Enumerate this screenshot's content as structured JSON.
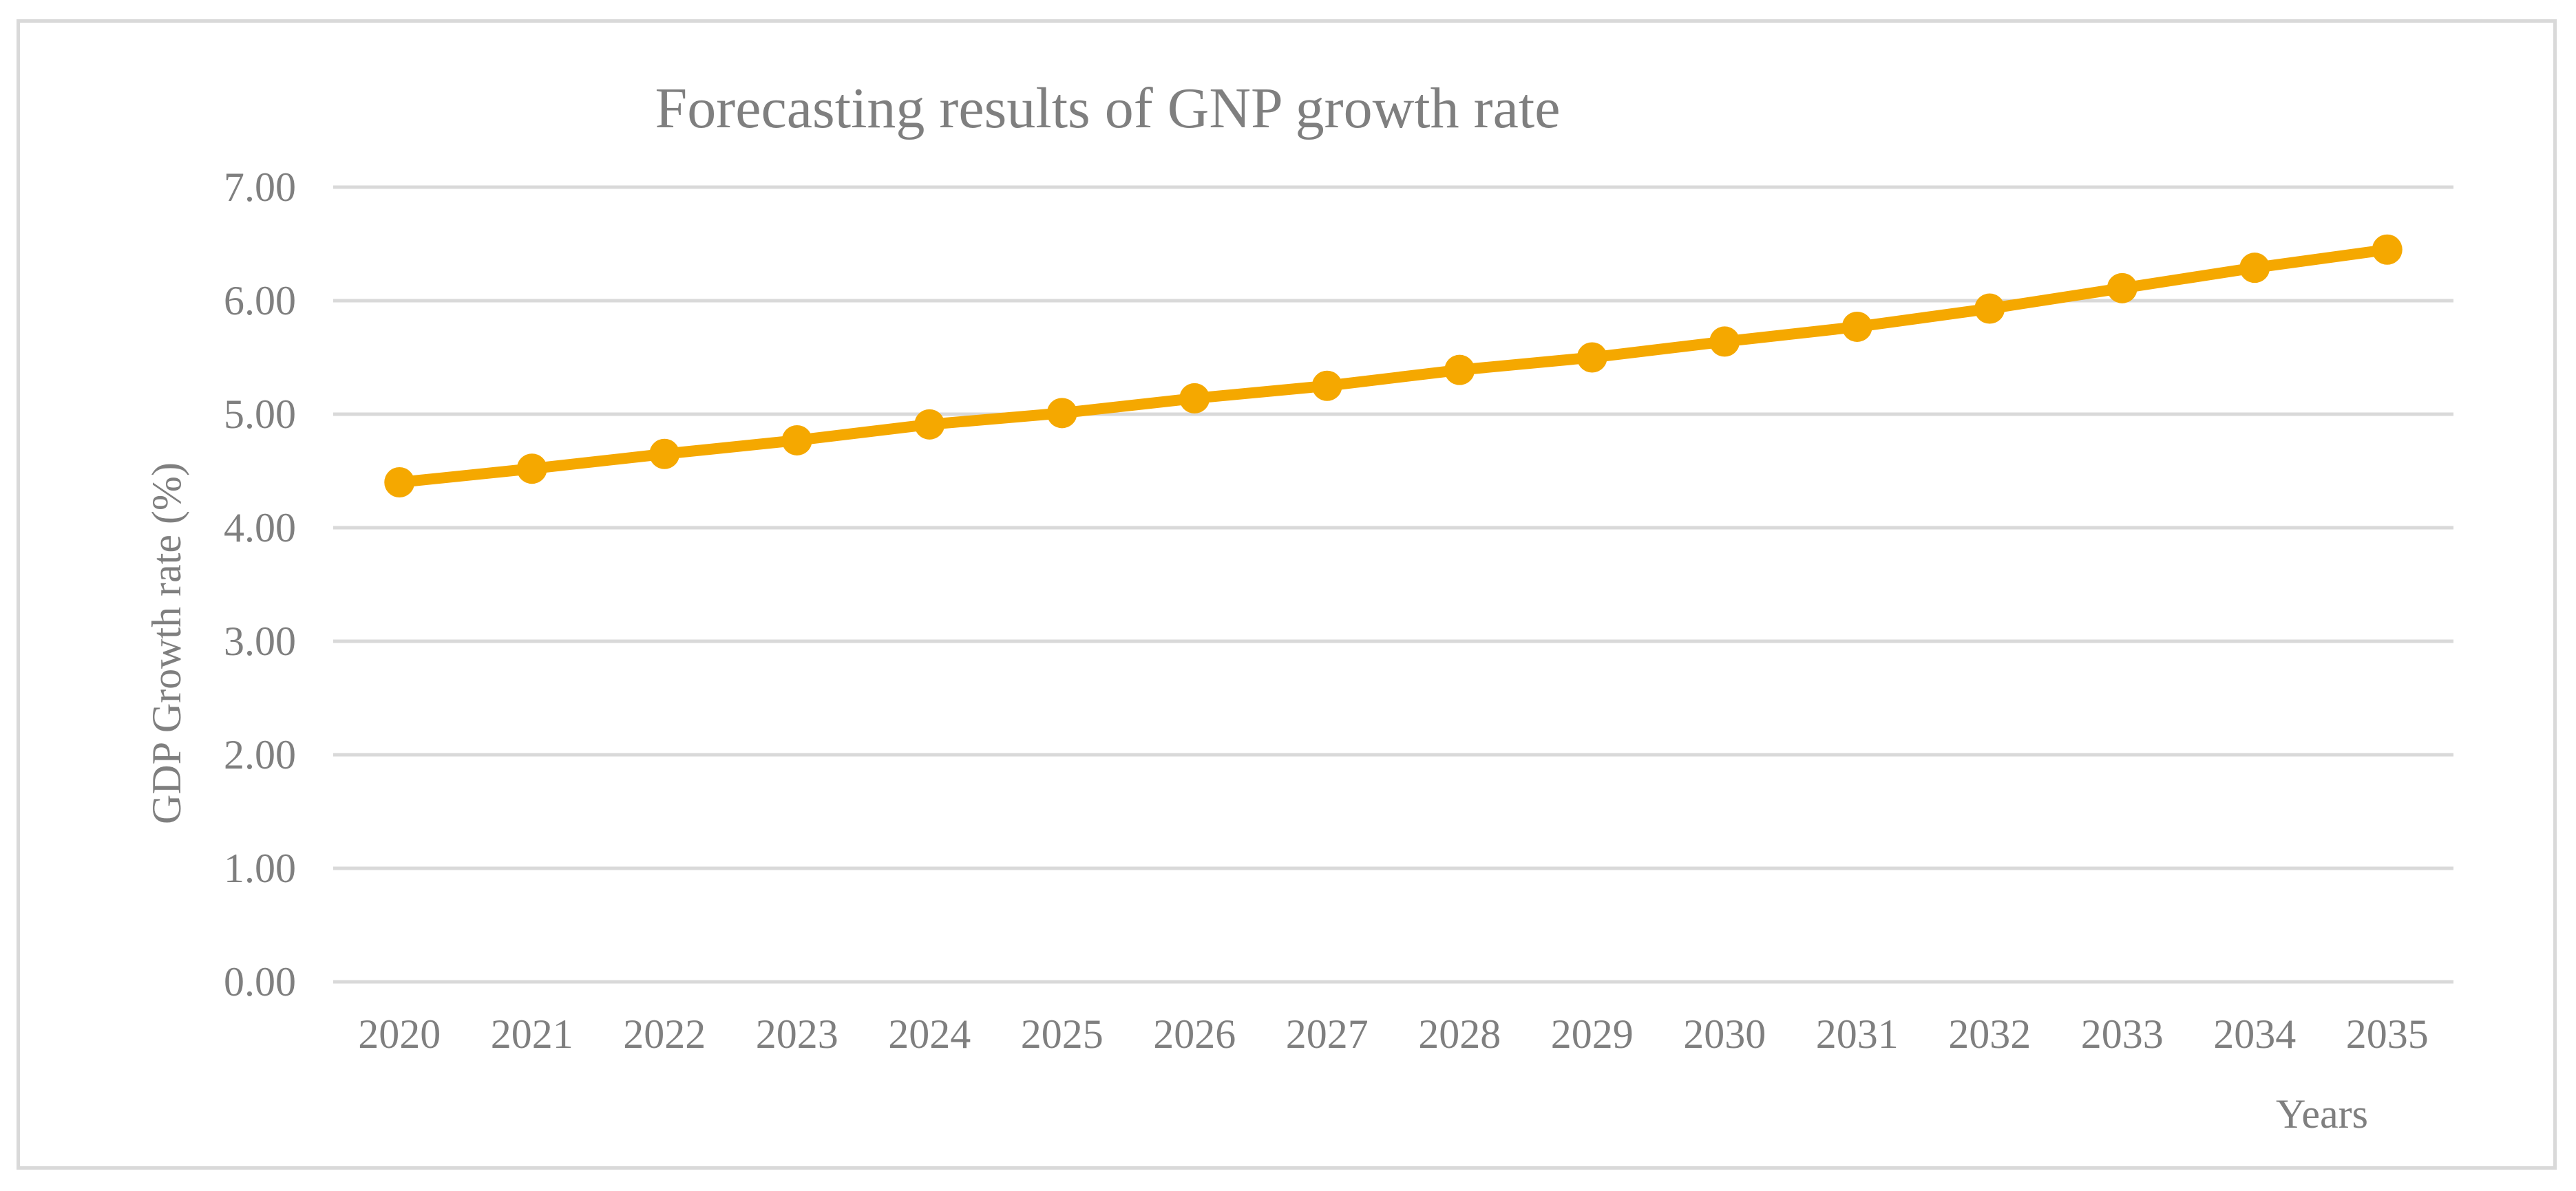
{
  "chart_data": {
    "type": "line",
    "title": "Forecasting results of GNP growth rate",
    "xlabel": "Years",
    "ylabel": "GDP  Growth rate (%)",
    "categories": [
      "2020",
      "2021",
      "2022",
      "2023",
      "2024",
      "2025",
      "2026",
      "2027",
      "2028",
      "2029",
      "2030",
      "2031",
      "2032",
      "2033",
      "2034",
      "2035"
    ],
    "series": [
      {
        "name": "GNP growth rate",
        "values": [
          4.4,
          4.52,
          4.65,
          4.77,
          4.91,
          5.01,
          5.14,
          5.25,
          5.39,
          5.5,
          5.64,
          5.77,
          5.93,
          6.11,
          6.29,
          6.45
        ]
      }
    ],
    "ylim": [
      0,
      7
    ],
    "yticks": [
      "0.00",
      "1.00",
      "2.00",
      "3.00",
      "4.00",
      "5.00",
      "6.00",
      "7.00"
    ],
    "grid": true,
    "legend": "none",
    "colors": {
      "line": "#f5a800",
      "grid": "#d9d9d9",
      "text": "#7f7f7f",
      "border": "#d9d9d9"
    }
  }
}
